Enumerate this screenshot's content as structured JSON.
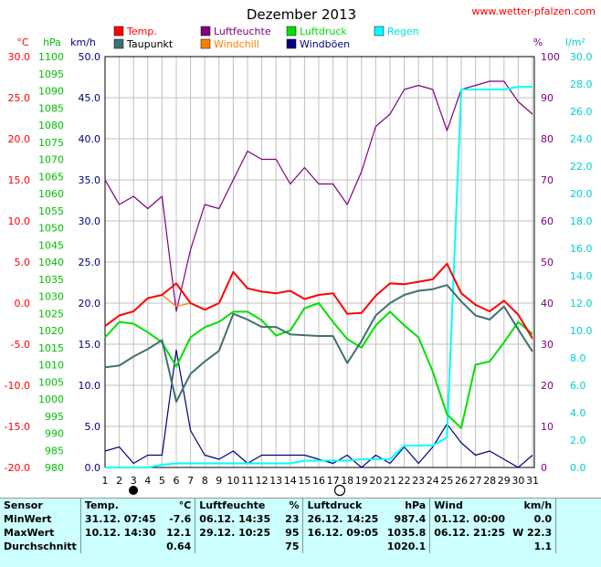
{
  "header": {
    "title": "Dezember 2013",
    "site": "www.wetter-pfalzen.com"
  },
  "chart_data": {
    "type": "line",
    "title": "Dezember 2013",
    "x": [
      1,
      2,
      3,
      4,
      5,
      6,
      7,
      8,
      9,
      10,
      11,
      12,
      13,
      14,
      15,
      16,
      17,
      18,
      19,
      20,
      21,
      22,
      23,
      24,
      25,
      26,
      27,
      28,
      29,
      30,
      31
    ],
    "axes": {
      "temp": {
        "unit": "°C",
        "min": -20,
        "max": 30,
        "ticks": [
          "30.0",
          "25.0",
          "20.0",
          "15.0",
          "10.0",
          "5.0",
          "0.0",
          "-5.0",
          "-10.0",
          "-15.0",
          "-20.0"
        ]
      },
      "pressure": {
        "unit": "hPa",
        "min": 980,
        "max": 1100,
        "ticks": [
          "1100",
          "1095",
          "1090",
          "1085",
          "1080",
          "1075",
          "1070",
          "1065",
          "1060",
          "1055",
          "1050",
          "1045",
          "1040",
          "1035",
          "1030",
          "1025",
          "1020",
          "1015",
          "1010",
          "1005",
          "1000",
          "995",
          "990",
          "985",
          "980"
        ]
      },
      "wind": {
        "unit": "km/h",
        "min": 0,
        "max": 50,
        "ticks": [
          "50.0",
          "45.0",
          "40.0",
          "35.0",
          "30.0",
          "25.0",
          "20.0",
          "15.0",
          "10.0",
          "5.0",
          "0.0"
        ]
      },
      "humidity": {
        "unit": "%",
        "min": 0,
        "max": 100,
        "ticks": [
          "100",
          "90",
          "80",
          "70",
          "60",
          "50",
          "40",
          "30",
          "20",
          "10",
          "0"
        ]
      },
      "rain": {
        "unit": "l/m²",
        "min": 0,
        "max": 30,
        "ticks": [
          "30.0",
          "28.0",
          "26.0",
          "24.0",
          "22.0",
          "20.0",
          "18.0",
          "16.0",
          "14.0",
          "12.0",
          "10.0",
          "8.0",
          "6.0",
          "4.0",
          "2.0",
          "0.0"
        ]
      }
    },
    "xticks": [
      "1",
      "2",
      "3",
      "4",
      "5",
      "6",
      "7",
      "8",
      "9",
      "10",
      "11",
      "12",
      "13",
      "14",
      "15",
      "16",
      "17",
      "18",
      "19",
      "20",
      "21",
      "22",
      "23",
      "24",
      "25",
      "26",
      "27",
      "28",
      "29",
      "30",
      "31"
    ],
    "series": [
      {
        "name": "Temp.",
        "axis": "temp",
        "color": "#ff0000",
        "values": [
          -2.8,
          -1.5,
          -1.0,
          0.6,
          1.0,
          2.4,
          0.0,
          -0.8,
          0.0,
          3.8,
          1.8,
          1.4,
          1.2,
          1.5,
          0.5,
          1.0,
          1.2,
          -1.3,
          -1.2,
          0.9,
          2.4,
          2.3,
          2.6,
          2.9,
          4.8,
          1.2,
          -0.2,
          -1.0,
          0.3,
          -1.4,
          -4.3
        ]
      },
      {
        "name": "Taupunkt",
        "axis": "temp",
        "color": "#407070",
        "values": [
          -7.8,
          -7.6,
          -6.5,
          -5.6,
          -4.5,
          -12.0,
          -8.6,
          -7.1,
          -5.8,
          -1.3,
          -2.0,
          -2.9,
          -2.9,
          -3.8,
          -3.9,
          -4.0,
          -4.0,
          -7.3,
          -4.6,
          -1.5,
          0.0,
          1.0,
          1.5,
          1.7,
          2.2,
          0.2,
          -1.5,
          -2.0,
          -0.4,
          -3.2,
          -5.9
        ]
      },
      {
        "name": "Luftfeuchte",
        "axis": "humidity",
        "color": "#800080",
        "values": [
          70,
          64,
          66,
          63,
          66,
          38,
          53,
          64,
          63,
          70,
          77,
          75,
          75,
          69,
          73,
          69,
          69,
          64,
          72,
          83,
          86,
          92,
          93,
          92,
          82,
          92,
          93,
          94,
          94,
          89,
          86
        ]
      },
      {
        "name": "Windchill",
        "axis": "temp",
        "color": "#ff8000",
        "values": [
          -2.8,
          -1.5,
          -1.0,
          0.6,
          1.0,
          -0.4,
          0.0,
          -0.8,
          0.0,
          3.8,
          1.8,
          1.4,
          1.2,
          1.5,
          0.5,
          1.0,
          1.2,
          -1.3,
          -1.2,
          0.9,
          2.4,
          2.3,
          2.6,
          2.9,
          4.8,
          1.2,
          -0.2,
          -1.0,
          0.3,
          -1.4,
          -4.3
        ]
      },
      {
        "name": "Luftdruck",
        "axis": "pressure",
        "color": "#00e000",
        "values": [
          1018,
          1022.5,
          1022,
          1019.5,
          1016.5,
          1009.5,
          1018,
          1021,
          1022.5,
          1025.5,
          1025.5,
          1023,
          1018.5,
          1020,
          1026.5,
          1028,
          1022.5,
          1017.5,
          1015,
          1021.5,
          1025.5,
          1021.5,
          1018,
          1008,
          995.5,
          991.5,
          1010,
          1011,
          1016.5,
          1022.5,
          1019
        ]
      },
      {
        "name": "Windböen",
        "axis": "wind",
        "color": "#000080",
        "values": [
          2.0,
          2.5,
          0.5,
          1.5,
          1.5,
          14.3,
          4.5,
          1.5,
          1.0,
          2.0,
          0.5,
          1.5,
          1.5,
          1.5,
          1.5,
          1.0,
          0.5,
          1.5,
          0.0,
          1.5,
          0.5,
          2.5,
          0.5,
          2.5,
          5.3,
          3.0,
          1.5,
          2.0,
          1.0,
          0.0,
          1.5
        ]
      },
      {
        "name": "Regen",
        "axis": "rain",
        "color": "#00ffff",
        "values": [
          0,
          0,
          0,
          0,
          0.2,
          0.3,
          0.3,
          0.3,
          0.3,
          0.3,
          0.3,
          0.3,
          0.3,
          0.3,
          0.5,
          0.5,
          0.5,
          0.5,
          0.6,
          0.6,
          0.6,
          1.6,
          1.6,
          1.6,
          2.2,
          27.6,
          27.6,
          27.6,
          27.6,
          27.8,
          27.8
        ]
      }
    ],
    "legend_placement": "top",
    "grid": true,
    "moon_phases": [
      {
        "day": 3,
        "phase": "new"
      },
      {
        "day": 17,
        "phase": "full"
      }
    ]
  },
  "stats": {
    "headers": [
      "Sensor",
      "Temp.",
      "°C",
      "Luftfeuchte",
      "%",
      "Luftdruck",
      "hPa",
      "Wind",
      "km/h"
    ],
    "rows": [
      {
        "label": "MinWert",
        "temp_time": "31.12.  07:45",
        "temp_val": "-7.6",
        "hum_time": "06.12.  14:35",
        "hum_val": "23",
        "pres_time": "26.12.  14:25",
        "pres_val": "987.4",
        "wind_time": "01.12.  00:00",
        "wind_val": "0.0"
      },
      {
        "label": "MaxWert",
        "temp_time": "10.12.  14:30",
        "temp_val": "12.1",
        "hum_time": "29.12.  10:25",
        "hum_val": "95",
        "pres_time": "16.12.  09:05",
        "pres_val": "1035.8",
        "wind_time": "06.12.  21:25",
        "wind_val": "W 22.3"
      },
      {
        "label": "Durchschnitt",
        "temp_time": "",
        "temp_val": "0.64",
        "hum_time": "",
        "hum_val": "75",
        "pres_time": "",
        "pres_val": "1020.1",
        "wind_time": "",
        "wind_val": "1.1"
      }
    ]
  }
}
